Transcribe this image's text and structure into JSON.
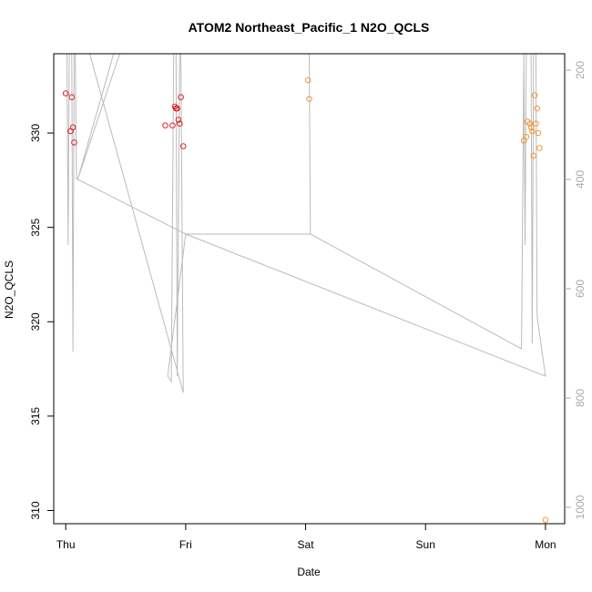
{
  "chart_data": {
    "type": "scatter",
    "title": "ATOM2 Northeast_Pacific_1 N2O_QCLS",
    "xlabel": "Date",
    "ylabel": "N2O_QCLS",
    "x_ticks": [
      "Thu",
      "Fri",
      "Sat",
      "Sun",
      "Mon"
    ],
    "xlim": [
      -0.1,
      4.16
    ],
    "ylim": [
      309.3,
      334.2
    ],
    "y_ticks": [
      310,
      315,
      320,
      325,
      330
    ],
    "right_axis": {
      "label": "",
      "ticks": [
        200,
        400,
        600,
        800,
        1000
      ],
      "ylim": [
        1030,
        170
      ],
      "color": "#aaaaaa"
    },
    "colors": {
      "thu": "#dd2222",
      "sun": "#ee9933",
      "line": "#bbbbbb"
    },
    "series": [
      {
        "color_key": "thu",
        "points": [
          {
            "x": 0.0,
            "y": 332.1
          },
          {
            "x": 0.05,
            "y": 331.9
          },
          {
            "x": 0.04,
            "y": 330.1
          },
          {
            "x": 0.06,
            "y": 330.3
          },
          {
            "x": 0.07,
            "y": 329.5
          },
          {
            "x": 0.83,
            "y": 330.4
          },
          {
            "x": 0.89,
            "y": 330.4
          },
          {
            "x": 0.91,
            "y": 331.4
          },
          {
            "x": 0.92,
            "y": 331.3
          },
          {
            "x": 0.93,
            "y": 331.3
          },
          {
            "x": 0.94,
            "y": 330.7
          },
          {
            "x": 0.95,
            "y": 330.5
          },
          {
            "x": 0.96,
            "y": 331.9
          },
          {
            "x": 0.98,
            "y": 329.3
          }
        ]
      },
      {
        "color_key": "sun",
        "points": [
          {
            "x": 2.02,
            "y": 332.8
          },
          {
            "x": 2.03,
            "y": 331.8
          },
          {
            "x": 3.82,
            "y": 329.6
          },
          {
            "x": 3.84,
            "y": 329.8
          },
          {
            "x": 3.85,
            "y": 330.6
          },
          {
            "x": 3.87,
            "y": 330.5
          },
          {
            "x": 3.88,
            "y": 330.3
          },
          {
            "x": 3.89,
            "y": 330.1
          },
          {
            "x": 3.9,
            "y": 328.8
          },
          {
            "x": 3.91,
            "y": 332.0
          },
          {
            "x": 3.92,
            "y": 330.5
          },
          {
            "x": 3.93,
            "y": 331.3
          },
          {
            "x": 3.94,
            "y": 330.0
          },
          {
            "x": 3.95,
            "y": 329.2
          },
          {
            "x": 4.0,
            "y": 309.5
          }
        ]
      }
    ],
    "altitude_line": [
      [
        0.0,
        170
      ],
      [
        0.01,
        170
      ],
      [
        0.02,
        520
      ],
      [
        0.03,
        170
      ],
      [
        0.05,
        170
      ],
      [
        0.06,
        715
      ],
      [
        0.07,
        170
      ],
      [
        0.08,
        170
      ],
      [
        0.09,
        400
      ],
      [
        0.1,
        400
      ],
      [
        0.4,
        170
      ],
      [
        0.45,
        170
      ],
      [
        0.1,
        400
      ],
      [
        1.0,
        500
      ],
      [
        2.04,
        500
      ],
      [
        2.03,
        170
      ],
      [
        2.04,
        500
      ],
      [
        3.8,
        710
      ],
      [
        3.82,
        170
      ],
      [
        3.83,
        520
      ],
      [
        3.84,
        170
      ],
      [
        3.85,
        170
      ],
      [
        3.88,
        170
      ],
      [
        3.89,
        700
      ],
      [
        3.9,
        170
      ],
      [
        3.92,
        170
      ],
      [
        3.93,
        650
      ],
      [
        4.0,
        760
      ],
      [
        1.0,
        500
      ],
      [
        0.85,
        760
      ],
      [
        0.88,
        770
      ],
      [
        0.9,
        170
      ],
      [
        0.92,
        170
      ],
      [
        0.93,
        760
      ],
      [
        0.95,
        170
      ],
      [
        0.96,
        170
      ],
      [
        0.98,
        790
      ],
      [
        0.2,
        170
      ],
      [
        0.1,
        170
      ]
    ]
  }
}
